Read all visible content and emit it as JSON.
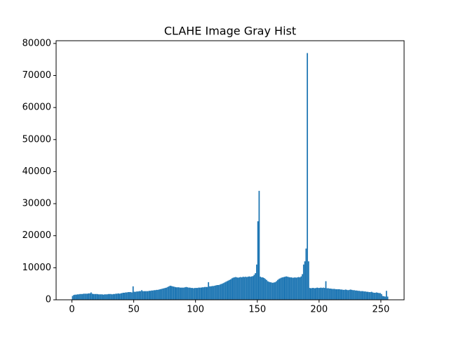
{
  "chart_data": {
    "type": "histogram",
    "title": "CLAHE Image Gray Hist",
    "color": "#1f77b4",
    "bins": [
      0,
      1,
      2,
      3,
      4,
      5,
      6,
      7,
      8,
      9,
      10,
      11,
      12,
      13,
      14,
      15,
      16,
      17,
      18,
      19,
      20,
      21,
      22,
      23,
      24,
      25,
      26,
      27,
      28,
      29,
      30,
      31,
      32,
      33,
      34,
      35,
      36,
      37,
      38,
      39,
      40,
      41,
      42,
      43,
      44,
      45,
      46,
      47,
      48,
      49,
      50,
      51,
      52,
      53,
      54,
      55,
      56,
      57,
      58,
      59,
      60,
      61,
      62,
      63,
      64,
      65,
      66,
      67,
      68,
      69,
      70,
      71,
      72,
      73,
      74,
      75,
      76,
      77,
      78,
      79,
      80,
      81,
      82,
      83,
      84,
      85,
      86,
      87,
      88,
      89,
      90,
      91,
      92,
      93,
      94,
      95,
      96,
      97,
      98,
      99,
      100,
      101,
      102,
      103,
      104,
      105,
      106,
      107,
      108,
      109,
      110,
      111,
      112,
      113,
      114,
      115,
      116,
      117,
      118,
      119,
      120,
      121,
      122,
      123,
      124,
      125,
      126,
      127,
      128,
      129,
      130,
      131,
      132,
      133,
      134,
      135,
      136,
      137,
      138,
      139,
      140,
      141,
      142,
      143,
      144,
      145,
      146,
      147,
      148,
      149,
      150,
      151,
      152,
      153,
      154,
      155,
      156,
      157,
      158,
      159,
      160,
      161,
      162,
      163,
      164,
      165,
      166,
      167,
      168,
      169,
      170,
      171,
      172,
      173,
      174,
      175,
      176,
      177,
      178,
      179,
      180,
      181,
      182,
      183,
      184,
      185,
      186,
      187,
      188,
      189,
      190,
      191,
      192,
      193,
      194,
      195,
      196,
      197,
      198,
      199,
      200,
      201,
      202,
      203,
      204,
      205,
      206,
      207,
      208,
      209,
      210,
      211,
      212,
      213,
      214,
      215,
      216,
      217,
      218,
      219,
      220,
      221,
      222,
      223,
      224,
      225,
      226,
      227,
      228,
      229,
      230,
      231,
      232,
      233,
      234,
      235,
      236,
      237,
      238,
      239,
      240,
      241,
      242,
      243,
      244,
      245,
      246,
      247,
      248,
      249,
      250,
      251,
      252,
      253,
      254,
      255,
      256
    ],
    "counts": [
      1200,
      1500,
      1600,
      1600,
      1700,
      1700,
      1800,
      1800,
      1800,
      1900,
      1900,
      1900,
      1900,
      2000,
      2000,
      2300,
      1900,
      1800,
      1800,
      1800,
      1800,
      1700,
      1700,
      1700,
      1700,
      1600,
      1700,
      1700,
      1700,
      1800,
      1800,
      1800,
      1700,
      1800,
      1800,
      1900,
      1900,
      2000,
      1900,
      2000,
      2100,
      2200,
      2200,
      2300,
      2300,
      2400,
      2400,
      2400,
      2300,
      4200,
      2500,
      2500,
      2600,
      2600,
      2700,
      2700,
      3000,
      2700,
      2700,
      2700,
      2700,
      2700,
      2800,
      2800,
      2900,
      2900,
      3000,
      3000,
      3100,
      3100,
      3200,
      3300,
      3400,
      3500,
      3600,
      3700,
      3800,
      4000,
      4200,
      4400,
      4300,
      4200,
      4100,
      4000,
      3900,
      3900,
      3900,
      3800,
      3800,
      3800,
      3800,
      3900,
      4000,
      3900,
      3800,
      3800,
      3700,
      3700,
      3600,
      3700,
      3700,
      3700,
      3800,
      3800,
      3800,
      3900,
      3900,
      4000,
      4000,
      4000,
      5500,
      4200,
      4200,
      4300,
      4300,
      4400,
      4500,
      4600,
      4600,
      4700,
      4900,
      5000,
      5200,
      5400,
      5600,
      5800,
      6000,
      6200,
      6400,
      6700,
      6900,
      7000,
      7100,
      7000,
      6900,
      7000,
      7100,
      7000,
      7200,
      7100,
      7200,
      7100,
      7200,
      7300,
      7200,
      7300,
      7400,
      7800,
      8300,
      11000,
      24500,
      34000,
      7200,
      7000,
      7000,
      6800,
      6500,
      6200,
      5800,
      5600,
      5500,
      5400,
      5300,
      5400,
      5500,
      5800,
      6200,
      6500,
      6700,
      6900,
      7000,
      7100,
      7200,
      7300,
      7200,
      7100,
      7000,
      7000,
      6900,
      6900,
      7000,
      6900,
      7000,
      7100,
      7000,
      7300,
      8000,
      11000,
      12000,
      16000,
      77000,
      12000,
      3700,
      3600,
      3700,
      3700,
      3600,
      3700,
      3800,
      3700,
      3700,
      3800,
      3700,
      3800,
      3700,
      5800,
      3600,
      3600,
      3500,
      3500,
      3400,
      3400,
      3400,
      3300,
      3300,
      3300,
      3300,
      3200,
      3200,
      3100,
      3100,
      3200,
      3100,
      3000,
      3100,
      3200,
      3100,
      3000,
      3000,
      2900,
      2900,
      2800,
      2800,
      2700,
      2700,
      2700,
      2600,
      2600,
      2500,
      2500,
      2400,
      2400,
      2500,
      2300,
      2200,
      2200,
      2300,
      2200,
      2100,
      2100,
      1800,
      1200,
      1100,
      1000,
      2800,
      1000
    ],
    "xlim": [
      -12.8,
      268.8
    ],
    "ylim": [
      0,
      80850
    ],
    "xticks": [
      0,
      50,
      100,
      150,
      200,
      250
    ],
    "yticks": [
      0,
      10000,
      20000,
      30000,
      40000,
      50000,
      60000,
      70000,
      80000
    ]
  }
}
